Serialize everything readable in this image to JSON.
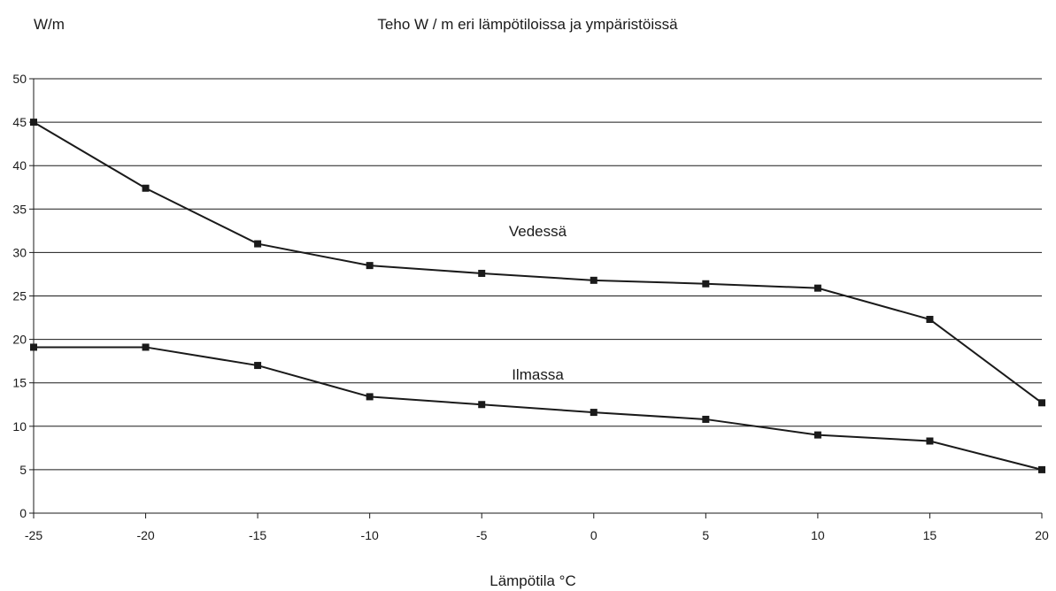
{
  "chart_data": {
    "type": "line",
    "title": "Teho W / m eri lämpötiloissa ja ympäristöissä",
    "ylabel": "W/m",
    "xlabel": "Lämpötila °C",
    "x": [
      -25,
      -20,
      -15,
      -10,
      -5,
      0,
      5,
      10,
      15,
      20
    ],
    "xticks": [
      "-25",
      "-20",
      "-15",
      "-10",
      "-5",
      "0",
      "5",
      "10",
      "15",
      "20"
    ],
    "yticks": [
      "0",
      "5",
      "10",
      "15",
      "20",
      "25",
      "30",
      "35",
      "40",
      "45",
      "50"
    ],
    "xlim": [
      -25,
      20
    ],
    "ylim": [
      0,
      50
    ],
    "grid": "horizontal",
    "legend": "inline",
    "series": [
      {
        "name": "Vedessä",
        "color": "#1a1a1a",
        "values": [
          45,
          37.4,
          31,
          28.5,
          27.6,
          26.8,
          26.4,
          25.9,
          22.3,
          12.7
        ]
      },
      {
        "name": "Ilmassa",
        "color": "#1a1a1a",
        "values": [
          19.1,
          19.1,
          17,
          13.4,
          12.5,
          11.6,
          10.8,
          9,
          8.3,
          5
        ]
      }
    ]
  }
}
